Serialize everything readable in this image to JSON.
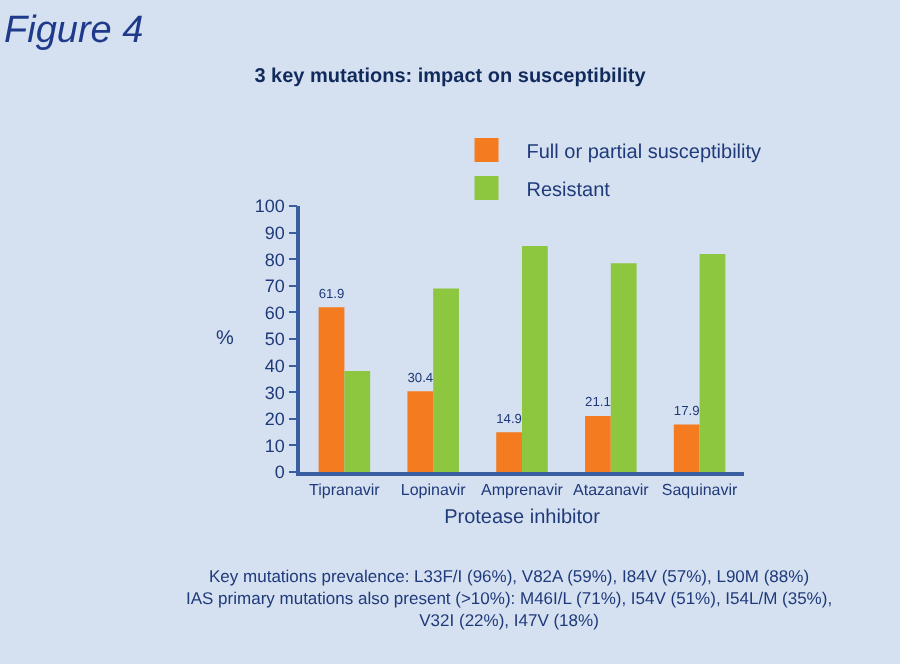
{
  "chart_data": {
    "type": "bar",
    "title": "3 key mutations: impact on susceptibility",
    "xlabel": "Protease inhibitor",
    "ylabel": "%",
    "categories": [
      "Tipranavir",
      "Lopinavir",
      "Amprenavir",
      "Atazanavir",
      "Saquinavir"
    ],
    "series": [
      {
        "name": "Full or partial susceptibility",
        "color": "#f47b20",
        "values": [
          61.9,
          30.4,
          14.9,
          21.1,
          17.9
        ],
        "value_labels": [
          "61.9",
          "30.4",
          "14.9",
          "21.1",
          "17.9"
        ]
      },
      {
        "name": "Resistant",
        "color": "#8dc63f",
        "values": [
          38,
          69,
          85,
          78.5,
          82
        ]
      }
    ],
    "ylim": [
      0,
      100
    ],
    "yticks": [
      0,
      10,
      20,
      30,
      40,
      50,
      60,
      70,
      80,
      90,
      100
    ],
    "grid": false,
    "legend": "top",
    "annotations": [
      "Figure 4",
      "Key mutations prevalence: L33F/I (96%), V82A (59%), I84V (57%), L90M (88%)\nIAS primary mutations also present (>10%): M46I/L (71%), I54V (51%), I54L/M (35%),\nV32I (22%), I47V (18%)"
    ]
  }
}
